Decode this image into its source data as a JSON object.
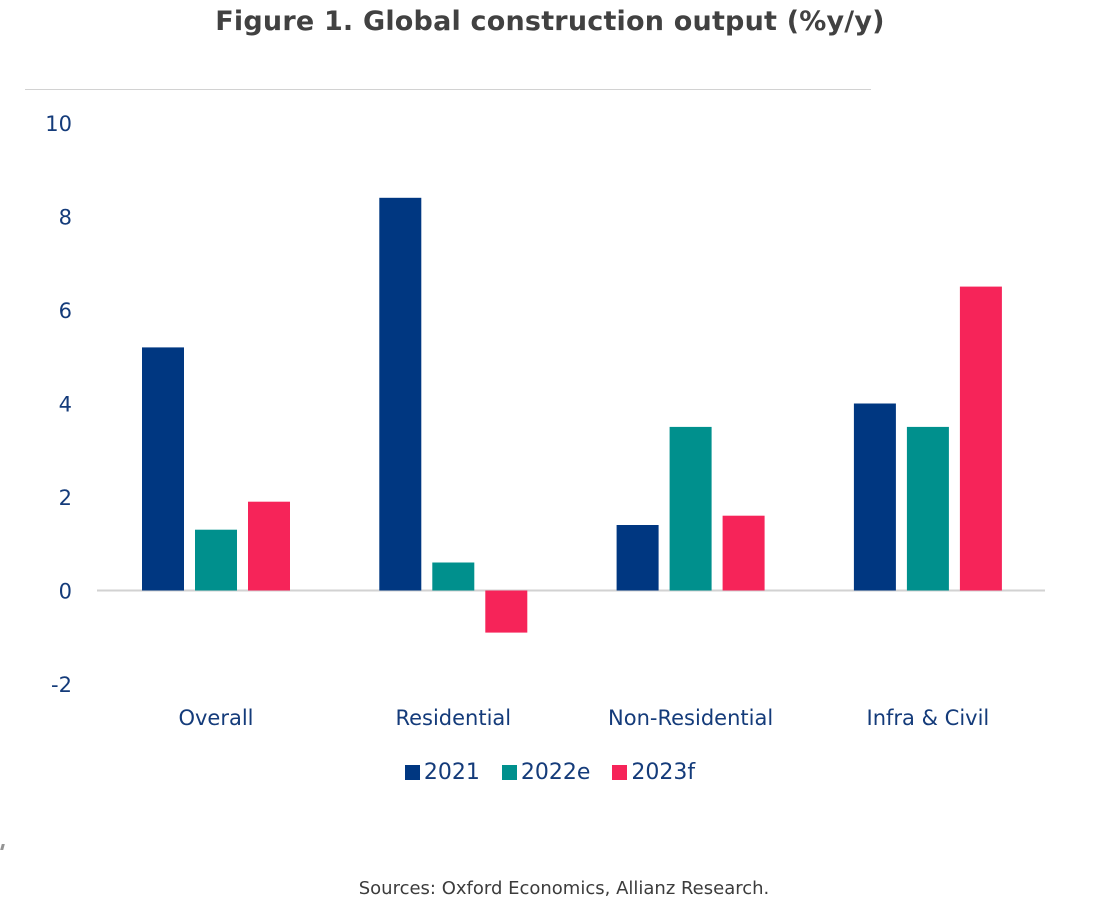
{
  "title": "Figure 1. Global construction output (%y/y)",
  "source": "Sources: Oxford Economics, Allianz Research.",
  "colors": {
    "text": "#143b7a",
    "title": "#414141",
    "baseline": "#d2d2d2"
  },
  "chart_data": {
    "type": "bar",
    "title": "Figure 1. Global construction output (%y/y)",
    "xlabel": "",
    "ylabel": "",
    "categories": [
      "Overall",
      "Residential",
      "Non-Residential",
      "Infra & Civil"
    ],
    "series": [
      {
        "name": "2021",
        "color": "#003781",
        "values": [
          5.2,
          8.4,
          1.4,
          4.0
        ]
      },
      {
        "name": "2022e",
        "color": "#00908d",
        "values": [
          1.3,
          0.6,
          3.5,
          3.5
        ]
      },
      {
        "name": "2023f",
        "color": "#f62459",
        "values": [
          1.9,
          -0.9,
          1.6,
          6.5
        ]
      }
    ],
    "ylim": [
      -2,
      10
    ],
    "yticks": [
      -2,
      0,
      2,
      4,
      6,
      8,
      10
    ],
    "ytick_labels": [
      "-2",
      "0",
      "2",
      "4",
      "6",
      "8",
      "10"
    ],
    "grid": false,
    "legend": {
      "placement": "bottom-center",
      "entries": [
        "2021",
        "2022e",
        "2023f"
      ]
    },
    "source": "Sources: Oxford Economics, Allianz Research."
  }
}
